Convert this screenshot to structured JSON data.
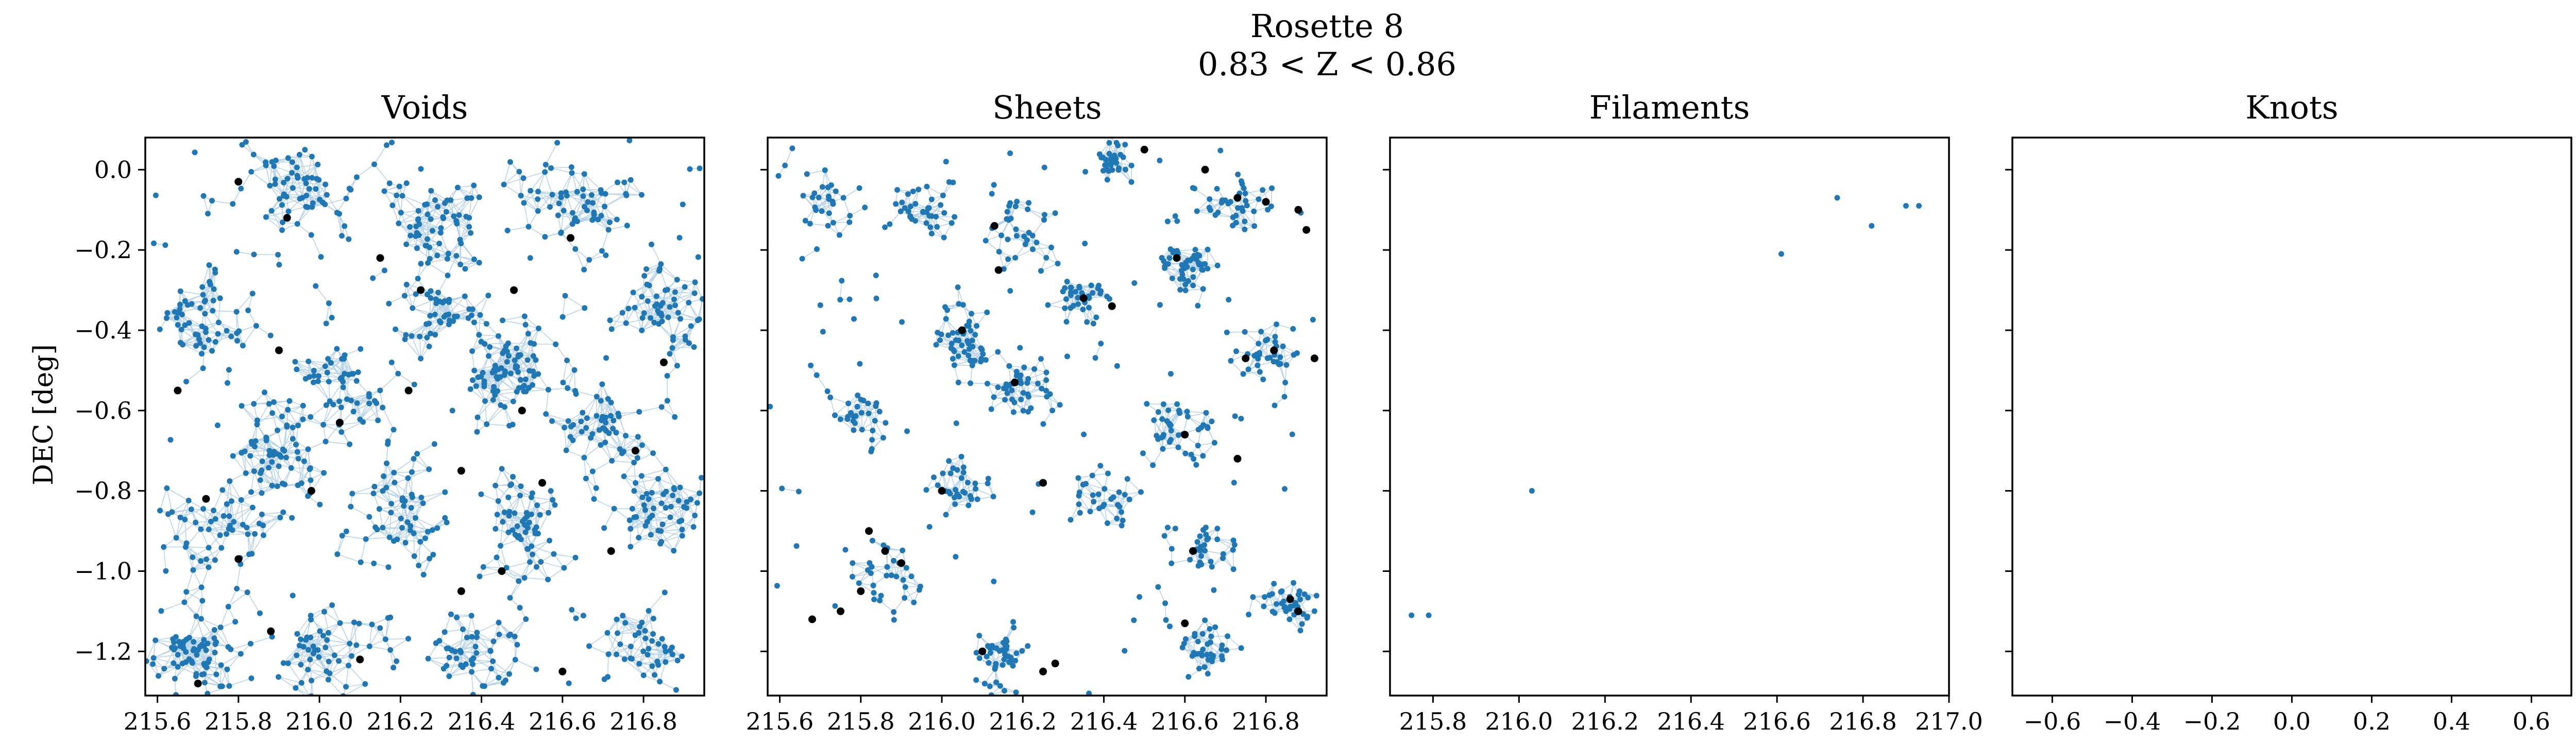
{
  "figure": {
    "title": "Rosette 8",
    "subtitle": "0.83 < Z < 0.86",
    "ylabel": "DEC [deg]"
  },
  "colors": {
    "points": "#1f77b4",
    "edges": "#a8c8e4",
    "highlight": "#000000"
  },
  "chart_data": [
    {
      "type": "scatter",
      "title": "Voids",
      "xlim": [
        215.57,
        216.95
      ],
      "ylim": [
        -1.31,
        0.08
      ],
      "xticks": [
        215.6,
        215.8,
        216.0,
        216.2,
        216.4,
        216.6,
        216.8
      ],
      "yticks": [
        0.0,
        -0.2,
        -0.4,
        -0.6,
        -0.8,
        -1.0,
        -1.2
      ],
      "show_ytick_labels": true,
      "approx_point_count": 1200,
      "density": "dense network filling most of the panel",
      "clusters": [
        {
          "x": 215.72,
          "y": -0.35,
          "spread": 0.12
        },
        {
          "x": 215.95,
          "y": -0.05,
          "spread": 0.14
        },
        {
          "x": 216.28,
          "y": -0.12,
          "spread": 0.1
        },
        {
          "x": 216.62,
          "y": -0.1,
          "spread": 0.13
        },
        {
          "x": 216.85,
          "y": -0.35,
          "spread": 0.1
        },
        {
          "x": 216.05,
          "y": -0.55,
          "spread": 0.12
        },
        {
          "x": 216.45,
          "y": -0.5,
          "spread": 0.1
        },
        {
          "x": 215.75,
          "y": -0.9,
          "spread": 0.13
        },
        {
          "x": 216.2,
          "y": -0.85,
          "spread": 0.12
        },
        {
          "x": 216.5,
          "y": -0.9,
          "spread": 0.1
        },
        {
          "x": 216.85,
          "y": -0.85,
          "spread": 0.1
        },
        {
          "x": 215.7,
          "y": -1.2,
          "spread": 0.1
        },
        {
          "x": 216.0,
          "y": -1.2,
          "spread": 0.12
        },
        {
          "x": 216.4,
          "y": -1.2,
          "spread": 0.1
        },
        {
          "x": 216.8,
          "y": -1.2,
          "spread": 0.1
        },
        {
          "x": 216.3,
          "y": -0.35,
          "spread": 0.1
        },
        {
          "x": 215.9,
          "y": -0.7,
          "spread": 0.1
        },
        {
          "x": 216.7,
          "y": -0.65,
          "spread": 0.1
        }
      ],
      "highlighted_points": [
        {
          "x": 215.65,
          "y": -0.55
        },
        {
          "x": 215.8,
          "y": -0.03
        },
        {
          "x": 215.92,
          "y": -0.12
        },
        {
          "x": 216.15,
          "y": -0.22
        },
        {
          "x": 216.25,
          "y": -0.3
        },
        {
          "x": 216.48,
          "y": -0.3
        },
        {
          "x": 216.62,
          "y": -0.17
        },
        {
          "x": 215.9,
          "y": -0.45
        },
        {
          "x": 216.05,
          "y": -0.63
        },
        {
          "x": 215.72,
          "y": -0.82
        },
        {
          "x": 215.98,
          "y": -0.8
        },
        {
          "x": 216.35,
          "y": -0.75
        },
        {
          "x": 216.55,
          "y": -0.78
        },
        {
          "x": 216.72,
          "y": -0.95
        },
        {
          "x": 216.45,
          "y": -1.0
        },
        {
          "x": 215.8,
          "y": -0.97
        },
        {
          "x": 215.88,
          "y": -1.15
        },
        {
          "x": 216.1,
          "y": -1.22
        },
        {
          "x": 216.35,
          "y": -1.05
        },
        {
          "x": 216.6,
          "y": -1.25
        },
        {
          "x": 215.7,
          "y": -1.28
        },
        {
          "x": 216.85,
          "y": -0.48
        },
        {
          "x": 216.78,
          "y": -0.7
        },
        {
          "x": 216.22,
          "y": -0.55
        },
        {
          "x": 216.5,
          "y": -0.6
        }
      ]
    },
    {
      "type": "scatter",
      "title": "Sheets",
      "xlim": [
        215.57,
        216.95
      ],
      "ylim": [
        -1.31,
        0.08
      ],
      "xticks": [
        215.6,
        215.8,
        216.0,
        216.2,
        216.4,
        216.6,
        216.8
      ],
      "yticks": [
        0.0,
        -0.2,
        -0.4,
        -0.6,
        -0.8,
        -1.0,
        -1.2
      ],
      "show_ytick_labels": false,
      "approx_point_count": 800,
      "density": "sparser clumpy groups",
      "clusters": [
        {
          "x": 215.7,
          "y": -0.1,
          "spread": 0.07
        },
        {
          "x": 215.95,
          "y": -0.1,
          "spread": 0.06
        },
        {
          "x": 216.2,
          "y": -0.15,
          "spread": 0.08
        },
        {
          "x": 216.42,
          "y": 0.02,
          "spread": 0.05
        },
        {
          "x": 216.72,
          "y": -0.1,
          "spread": 0.1
        },
        {
          "x": 216.6,
          "y": -0.25,
          "spread": 0.06
        },
        {
          "x": 216.35,
          "y": -0.32,
          "spread": 0.07
        },
        {
          "x": 216.05,
          "y": -0.42,
          "spread": 0.08
        },
        {
          "x": 216.8,
          "y": -0.45,
          "spread": 0.08
        },
        {
          "x": 216.2,
          "y": -0.55,
          "spread": 0.07
        },
        {
          "x": 215.8,
          "y": -0.62,
          "spread": 0.08
        },
        {
          "x": 216.6,
          "y": -0.65,
          "spread": 0.08
        },
        {
          "x": 216.05,
          "y": -0.8,
          "spread": 0.08
        },
        {
          "x": 216.4,
          "y": -0.82,
          "spread": 0.07
        },
        {
          "x": 215.85,
          "y": -1.0,
          "spread": 0.1
        },
        {
          "x": 216.65,
          "y": -0.95,
          "spread": 0.07
        },
        {
          "x": 216.85,
          "y": -1.08,
          "spread": 0.06
        },
        {
          "x": 216.15,
          "y": -1.22,
          "spread": 0.07
        },
        {
          "x": 216.65,
          "y": -1.2,
          "spread": 0.06
        }
      ],
      "highlighted_points": [
        {
          "x": 216.5,
          "y": 0.05
        },
        {
          "x": 216.65,
          "y": 0.0
        },
        {
          "x": 216.73,
          "y": -0.07
        },
        {
          "x": 216.8,
          "y": -0.08
        },
        {
          "x": 216.88,
          "y": -0.1
        },
        {
          "x": 216.9,
          "y": -0.15
        },
        {
          "x": 216.58,
          "y": -0.22
        },
        {
          "x": 216.13,
          "y": -0.14
        },
        {
          "x": 216.14,
          "y": -0.25
        },
        {
          "x": 216.35,
          "y": -0.32
        },
        {
          "x": 216.42,
          "y": -0.34
        },
        {
          "x": 216.05,
          "y": -0.4
        },
        {
          "x": 216.82,
          "y": -0.45
        },
        {
          "x": 216.92,
          "y": -0.47
        },
        {
          "x": 216.75,
          "y": -0.47
        },
        {
          "x": 216.18,
          "y": -0.53
        },
        {
          "x": 216.6,
          "y": -0.66
        },
        {
          "x": 216.73,
          "y": -0.72
        },
        {
          "x": 216.0,
          "y": -0.8
        },
        {
          "x": 216.25,
          "y": -0.78
        },
        {
          "x": 215.82,
          "y": -0.9
        },
        {
          "x": 215.86,
          "y": -0.95
        },
        {
          "x": 215.9,
          "y": -0.98
        },
        {
          "x": 215.8,
          "y": -1.05
        },
        {
          "x": 215.75,
          "y": -1.1
        },
        {
          "x": 215.68,
          "y": -1.12
        },
        {
          "x": 216.62,
          "y": -0.95
        },
        {
          "x": 216.86,
          "y": -1.07
        },
        {
          "x": 216.88,
          "y": -1.1
        },
        {
          "x": 216.6,
          "y": -1.13
        },
        {
          "x": 216.1,
          "y": -1.2
        },
        {
          "x": 216.25,
          "y": -1.25
        },
        {
          "x": 216.28,
          "y": -1.23
        }
      ]
    },
    {
      "type": "scatter",
      "title": "Filaments",
      "xlim": [
        215.7,
        217.0
      ],
      "ylim": [
        -1.31,
        0.08
      ],
      "xticks": [
        215.8,
        216.0,
        216.2,
        216.4,
        216.6,
        216.8,
        217.0
      ],
      "yticks": [
        0.0,
        -0.2,
        -0.4,
        -0.6,
        -0.8,
        -1.0,
        -1.2
      ],
      "show_ytick_labels": false,
      "points": [
        {
          "x": 215.75,
          "y": -1.11
        },
        {
          "x": 215.79,
          "y": -1.11
        },
        {
          "x": 216.03,
          "y": -0.8
        },
        {
          "x": 216.61,
          "y": -0.21
        },
        {
          "x": 216.74,
          "y": -0.07
        },
        {
          "x": 216.82,
          "y": -0.14
        },
        {
          "x": 216.9,
          "y": -0.09
        },
        {
          "x": 216.93,
          "y": -0.09
        }
      ]
    },
    {
      "type": "scatter",
      "title": "Knots",
      "xlim": [
        -0.7,
        0.7
      ],
      "ylim": [
        -1.31,
        0.08
      ],
      "xticks": [
        -0.6,
        -0.4,
        -0.2,
        0.0,
        0.2,
        0.4,
        0.6
      ],
      "yticks": [
        0.0,
        -0.2,
        -0.4,
        -0.6,
        -0.8,
        -1.0,
        -1.2
      ],
      "show_ytick_labels": false,
      "points": []
    }
  ]
}
